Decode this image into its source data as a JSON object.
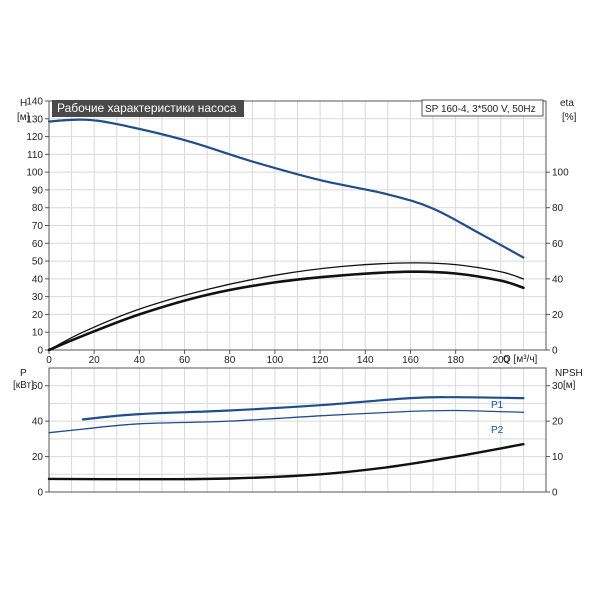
{
  "chart_data": [
    {
      "type": "line",
      "title": "Рабочие характеристики насоса",
      "model": "SP 160-4, 3*500 V, 50Hz",
      "ylabel_left": "H",
      "yunit_left": "[м]",
      "ylabel_right": "eta",
      "yunit_right": "[%]",
      "xlabel": "Q [м³/ч]",
      "xlim": [
        0,
        220
      ],
      "ylim_left": [
        0,
        140
      ],
      "ylim_right": [
        0,
        140
      ],
      "xticks": [
        0,
        20,
        40,
        60,
        80,
        100,
        120,
        140,
        160,
        180,
        200
      ],
      "yticks_left": [
        0,
        10,
        20,
        30,
        40,
        50,
        60,
        70,
        80,
        90,
        100,
        110,
        120,
        130,
        140
      ],
      "yticks_right": [
        0,
        20,
        40,
        60,
        80,
        100
      ],
      "grid": true,
      "series": [
        {
          "axis": "left",
          "color": "#1f4e8c",
          "x": [
            0,
            15,
            30,
            60,
            90,
            120,
            150,
            170,
            190,
            210
          ],
          "values": [
            128.5,
            129.5,
            127,
            118,
            106,
            95.5,
            87.5,
            79.5,
            66,
            52
          ]
        },
        {
          "axis": "right",
          "color": "#111111",
          "x": [
            0,
            15,
            40,
            70,
            100,
            130,
            160,
            180,
            200,
            210
          ],
          "values": [
            0,
            10,
            23,
            34,
            42,
            47,
            49,
            48,
            44,
            40
          ]
        },
        {
          "axis": "right",
          "color": "#111111",
          "x": [
            0,
            15,
            40,
            70,
            100,
            130,
            160,
            180,
            200,
            210
          ],
          "values": [
            0,
            8,
            20,
            31,
            38,
            42,
            44,
            43,
            39,
            35
          ]
        }
      ]
    },
    {
      "type": "line",
      "ylabel_left": "P",
      "yunit_left": "[кВт]",
      "ylabel_right": "NPSH",
      "yunit_right": "[м]",
      "xlim": [
        0,
        220
      ],
      "ylim_left": [
        0,
        70
      ],
      "ylim_right": [
        0,
        35
      ],
      "yticks_left": [
        0,
        20,
        40,
        60
      ],
      "yticks_right": [
        0,
        10,
        20,
        30
      ],
      "grid": true,
      "series": [
        {
          "name": "P1",
          "axis": "left",
          "color": "#1f4e8c",
          "x": [
            15,
            40,
            80,
            120,
            160,
            180,
            210
          ],
          "values": [
            41,
            44,
            46,
            49,
            53,
            53.5,
            53
          ]
        },
        {
          "name": "P2",
          "axis": "left",
          "color": "#1f4e8c",
          "x": [
            0,
            15,
            40,
            80,
            120,
            160,
            180,
            210
          ],
          "values": [
            33.5,
            35.5,
            38.5,
            40,
            43,
            45.5,
            46,
            45
          ]
        },
        {
          "axis": "right",
          "color": "#111111",
          "x": [
            0,
            40,
            80,
            120,
            150,
            180,
            210
          ],
          "values": [
            3.7,
            3.6,
            3.8,
            5,
            7,
            10,
            13.5
          ]
        }
      ]
    }
  ]
}
